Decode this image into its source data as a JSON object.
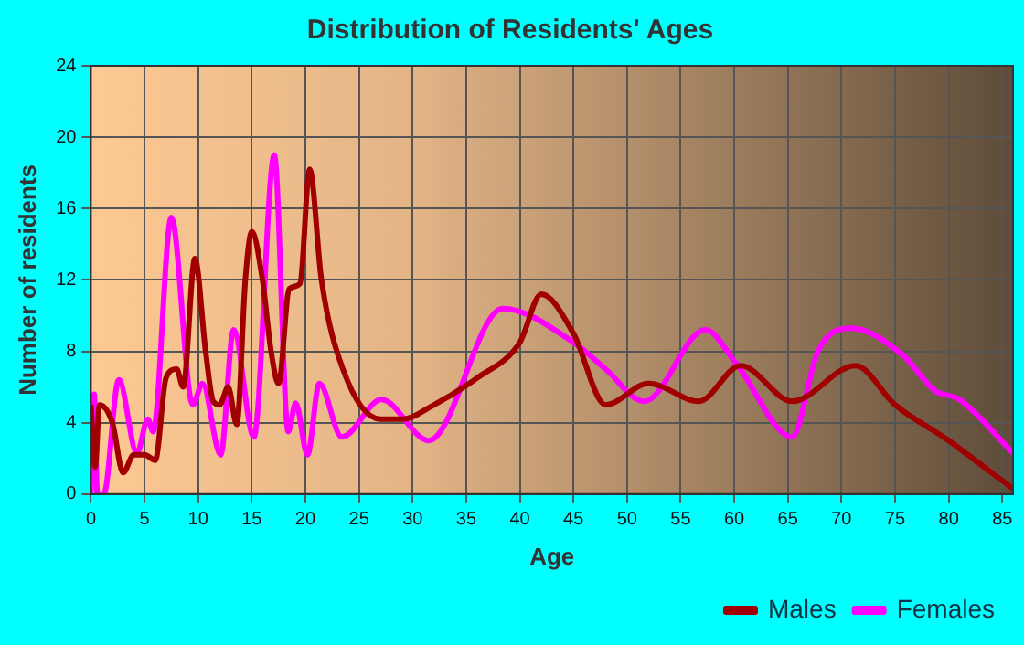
{
  "chart_data": {
    "type": "line",
    "title": "Distribution of Residents' Ages",
    "xlabel": "Age",
    "ylabel": "Number of residents",
    "xlim": [
      0,
      86
    ],
    "xticks": [
      0,
      5,
      10,
      15,
      20,
      25,
      30,
      35,
      40,
      45,
      50,
      55,
      60,
      65,
      70,
      75,
      80,
      85
    ],
    "ylim": [
      0,
      24
    ],
    "yticks": [
      0,
      4,
      8,
      12,
      16,
      20,
      24
    ],
    "grid": true,
    "legend": "bottom",
    "marker": "none",
    "line_style": "solid",
    "series": [
      {
        "name": "Males",
        "color": "#a00000",
        "x": [
          0,
          0.4,
          0.8,
          2,
          3,
          4,
          5,
          6,
          7,
          8,
          8.6,
          9.7,
          10.7,
          11.4,
          12,
          12.8,
          13.6,
          14.4,
          15,
          16,
          16.8,
          17.5,
          18.5,
          19.5,
          20.4,
          21.5,
          23.5,
          27,
          29,
          32,
          36,
          40,
          42,
          45,
          48,
          52,
          56.7,
          60.6,
          65.4,
          71.3,
          75,
          80,
          84,
          86
        ],
        "values": [
          5,
          1.5,
          5,
          4,
          1.2,
          2.2,
          2.2,
          1.9,
          6.5,
          7,
          6,
          13.2,
          8,
          5.2,
          5,
          6,
          3.9,
          12,
          14.7,
          12,
          8,
          6.2,
          11.5,
          11.8,
          18.2,
          12,
          7,
          4.2,
          4.2,
          5,
          6.5,
          8.5,
          11.2,
          9,
          5,
          6.2,
          5.2,
          7.2,
          5.2,
          7.2,
          5,
          3,
          1.2,
          0.3
        ]
      },
      {
        "name": "Females",
        "color": "#ff00ff",
        "x": [
          0,
          0.3,
          0.6,
          1.2,
          2.6,
          4.3,
          5.3,
          5.8,
          7.5,
          9.5,
          10.4,
          12.1,
          13.3,
          15.2,
          17.1,
          18.4,
          19.1,
          20.2,
          21.3,
          23.4,
          27.1,
          31.5,
          38.4,
          45,
          48,
          51.6,
          57.3,
          60.2,
          65.4,
          67.8,
          70.9,
          75.7,
          78.7,
          81,
          86
        ],
        "values": [
          0,
          5.6,
          0,
          0,
          6.4,
          2.3,
          4.2,
          3.5,
          15.5,
          5,
          6.2,
          2.2,
          9.2,
          3.2,
          19,
          3.5,
          5.1,
          2.2,
          6.2,
          3.2,
          5.3,
          3,
          10.4,
          8.5,
          7,
          5.2,
          9.2,
          7.3,
          3.2,
          8,
          9.3,
          7.8,
          5.8,
          5.3,
          2.3
        ]
      }
    ]
  }
}
